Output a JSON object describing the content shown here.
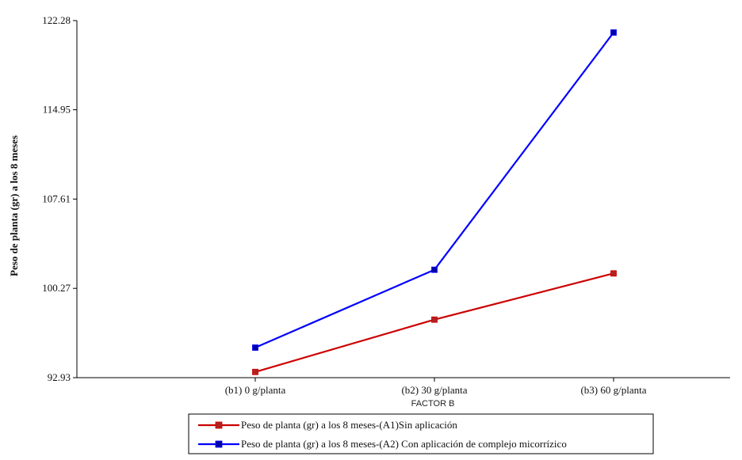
{
  "chart_data": {
    "type": "line",
    "title": "",
    "xlabel": "FACTOR B",
    "ylabel": "Peso de planta (gr) a los 8 meses",
    "categories": [
      "(b1) 0 g/planta",
      "(b2) 30 g/planta",
      "(b3) 60 g/planta"
    ],
    "yticks": [
      "92.93",
      "100.27",
      "107.61",
      "114.95",
      "122.28"
    ],
    "ylim": [
      92.93,
      122.28
    ],
    "grid": false,
    "legend_position": "bottom",
    "series": [
      {
        "name": "Peso de planta (gr) a los 8 meses-(A1)Sin aplicación",
        "color": "#cc0000",
        "marker_color": "#b22222",
        "values": [
          93.4,
          97.7,
          101.5
        ]
      },
      {
        "name": "Peso de planta (gr) a los 8 meses-(A2) Con aplicación de complejo micorrízico",
        "color": "#0000ff",
        "marker_color": "#0000aa",
        "values": [
          95.4,
          101.8,
          121.3
        ]
      }
    ]
  }
}
